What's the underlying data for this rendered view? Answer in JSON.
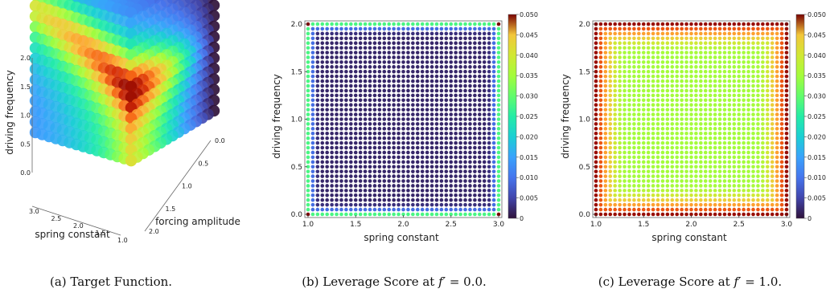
{
  "chart_data": [
    {
      "type": "scatter3d",
      "caption": "(a) Target Function.",
      "xlabel": "spring constant",
      "ylabel": "forcing amplitude",
      "zlabel": "driving frequency",
      "x_ticks": [
        "3.0",
        "2.5",
        "2.0",
        "1.5",
        "1.0"
      ],
      "y_ticks": [
        "0.0",
        "0.5",
        "1.0",
        "1.5",
        "2.0"
      ],
      "z_ticks": [
        "0.0",
        "0.5",
        "1.0",
        "1.5",
        "2.0"
      ],
      "xlim": [
        1.0,
        3.0
      ],
      "ylim": [
        0.0,
        2.0
      ],
      "zlim": [
        0.0,
        2.0
      ],
      "colormap": "turbo",
      "grid": false
    },
    {
      "type": "scatter",
      "caption": "(b) Leverage Score at f′ = 0.0.",
      "caption_plain": "(b) Leverage Score at ",
      "caption_var": "f′",
      "caption_val": " = 0.0.",
      "xlabel": "spring constant",
      "ylabel": "driving frequency",
      "xlim": [
        1.0,
        3.0
      ],
      "ylim": [
        0.0,
        2.0
      ],
      "x_ticks": [
        "1.0",
        "1.5",
        "2.0",
        "2.5",
        "3.0"
      ],
      "y_ticks": [
        "0.0",
        "0.5",
        "1.0",
        "1.5",
        "2.0"
      ],
      "grid_points": 41,
      "colorbar": {
        "range": [
          0,
          0.05
        ],
        "ticks": [
          "0",
          "0.005",
          "0.010",
          "0.015",
          "0.020",
          "0.025",
          "0.030",
          "0.035",
          "0.040",
          "0.045",
          "0.050"
        ],
        "colormap": "turbo"
      },
      "pattern": "edges-high-interior-low",
      "values_summary": {
        "corner": 0.05,
        "edge": 0.02,
        "interior": 0.0
      }
    },
    {
      "type": "scatter",
      "caption": "(c) Leverage Score at f′ = 1.0.",
      "caption_plain": "(c) Leverage Score at ",
      "caption_var": "f′",
      "caption_val": " = 1.0.",
      "xlabel": "spring constant",
      "ylabel": "driving frequency",
      "xlim": [
        1.0,
        3.0
      ],
      "ylim": [
        0.0,
        2.0
      ],
      "x_ticks": [
        "1.0",
        "1.5",
        "2.0",
        "2.5",
        "3.0"
      ],
      "y_ticks": [
        "0.0",
        "0.5",
        "1.0",
        "1.5",
        "2.0"
      ],
      "grid_points": 41,
      "colorbar": {
        "range": [
          0,
          0.05
        ],
        "ticks": [
          "0",
          "0.005",
          "0.010",
          "0.015",
          "0.020",
          "0.025",
          "0.030",
          "0.035",
          "0.040",
          "0.045",
          "0.050"
        ],
        "colormap": "turbo"
      },
      "pattern": "edges-high-interior-mid",
      "values_summary": {
        "corner": 0.05,
        "edge": 0.048,
        "interior": 0.025
      }
    }
  ]
}
